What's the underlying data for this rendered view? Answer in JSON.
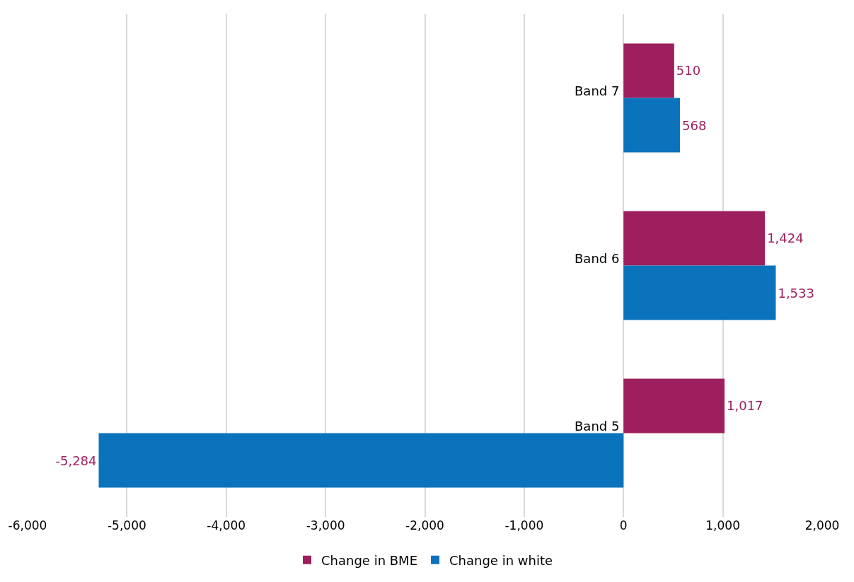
{
  "chart_data": {
    "type": "bar",
    "orientation": "horizontal",
    "categories": [
      "Band 7",
      "Band 6",
      "Band 5"
    ],
    "series": [
      {
        "name": "Change in BME",
        "color": "#9e1f5e",
        "values": [
          510,
          1424,
          1017
        ],
        "value_labels": [
          "510",
          "1,424",
          "1,017"
        ]
      },
      {
        "name": "Change in white",
        "color": "#0b72bc",
        "values": [
          568,
          1533,
          -5284
        ],
        "value_labels": [
          "568",
          "1,533",
          "-5,284"
        ]
      }
    ],
    "xlim": [
      -6000,
      2000
    ],
    "xticks": [
      {
        "value": -6000,
        "label": "-6,000"
      },
      {
        "value": -5000,
        "label": "-5,000"
      },
      {
        "value": -4000,
        "label": "-4,000"
      },
      {
        "value": -3000,
        "label": "-3,000"
      },
      {
        "value": -2000,
        "label": "-2,000"
      },
      {
        "value": -1000,
        "label": "-1,000"
      },
      0,
      {
        "value": 1000,
        "label": "1,000"
      },
      {
        "value": 2000,
        "label": "2,000"
      }
    ],
    "grid": "x",
    "legend": "bottom"
  }
}
